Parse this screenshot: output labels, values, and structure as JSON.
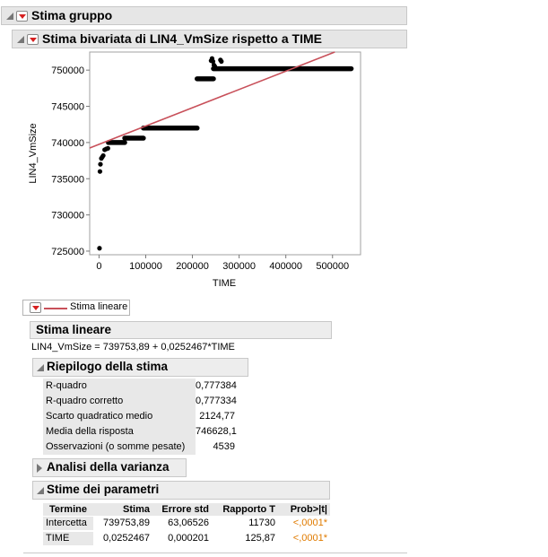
{
  "report": {
    "outline_title": "Stima gruppo",
    "bivariate_title": "Stima bivariata di LIN4_VmSize rispetto a TIME"
  },
  "chart_data": {
    "type": "scatter",
    "xlabel": "TIME",
    "ylabel": "LIN4_VmSize",
    "xlim": [
      -20000,
      560000
    ],
    "ylim": [
      724500,
      752500
    ],
    "x_ticks": [
      "0",
      "100000",
      "200000",
      "300000",
      "400000",
      "500000"
    ],
    "y_ticks": [
      "725000",
      "730000",
      "735000",
      "740000",
      "745000",
      "750000"
    ],
    "x_tick_values": [
      0,
      100000,
      200000,
      300000,
      400000,
      500000
    ],
    "y_tick_values": [
      725000,
      730000,
      735000,
      740000,
      745000,
      750000
    ],
    "points": [
      [
        1000,
        725400
      ],
      [
        2000,
        736000
      ],
      [
        3000,
        737000
      ],
      [
        5000,
        737800
      ],
      [
        7000,
        738000
      ],
      [
        9000,
        738200
      ],
      [
        12000,
        739000
      ],
      [
        15000,
        739100
      ],
      [
        19000,
        739200
      ]
    ],
    "segments": [
      {
        "x_start": 20000,
        "x_end": 55000,
        "y": 740000
      },
      {
        "x_start": 55000,
        "x_end": 95000,
        "y": 740600
      },
      {
        "x_start": 95000,
        "x_end": 210000,
        "y": 742000
      },
      {
        "x_start": 210000,
        "x_end": 245000,
        "y": 748800
      },
      {
        "x_start": 245000,
        "x_end": 540000,
        "y": 750200
      }
    ],
    "extra_points": [
      [
        240000,
        751300
      ],
      [
        242000,
        751600
      ],
      [
        244000,
        751200
      ],
      [
        246000,
        750700
      ],
      [
        248000,
        750500
      ],
      [
        260000,
        751400
      ],
      [
        262000,
        751200
      ]
    ],
    "fit_line": {
      "intercept": 739753.89,
      "slope": 0.0252467,
      "color": "#c8505a"
    }
  },
  "legend": {
    "fit_label": "Stima lineare"
  },
  "fit": {
    "section_title": "Stima lineare",
    "equation": "LIN4_VmSize = 739753,89 + 0,0252467*TIME"
  },
  "summary": {
    "title": "Riepilogo della stima",
    "rows": [
      {
        "label": "R-quadro",
        "value": "0,777384"
      },
      {
        "label": "R-quadro corretto",
        "value": "0,777334"
      },
      {
        "label": "Scarto quadratico medio",
        "value": "2124,77"
      },
      {
        "label": "Media della risposta",
        "value": "746628,1"
      },
      {
        "label": "Osservazioni (o somme pesate)",
        "value": "4539"
      }
    ]
  },
  "anova": {
    "title": "Analisi della varianza"
  },
  "params": {
    "title": "Stime dei parametri",
    "headers": [
      "Termine",
      "Stima",
      "Errore std",
      "Rapporto T",
      "Prob>|t|"
    ],
    "rows": [
      {
        "term": "Intercetta",
        "estimate": "739753,89",
        "stderr": "63,06526",
        "tratio": "11730",
        "prob": "<,0001*"
      },
      {
        "term": "TIME",
        "estimate": "0,0252467",
        "stderr": "0,000201",
        "tratio": "125,87",
        "prob": "<,0001*"
      }
    ],
    "prob_color": "#e07b00"
  }
}
